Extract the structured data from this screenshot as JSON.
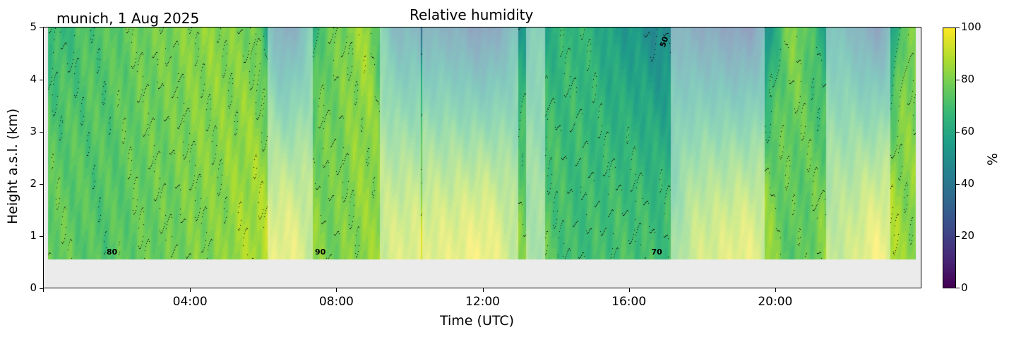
{
  "chart_data": {
    "type": "heatmap",
    "title": "Relative humidity",
    "subtitle": "munich, 1 Aug 2025",
    "xlabel": "Time (UTC)",
    "ylabel": "Height a.s.l. (km)",
    "xlim_hours": [
      0,
      24
    ],
    "ylim": [
      0,
      5
    ],
    "x_ticks": [
      {
        "hour": 4,
        "label": "04:00"
      },
      {
        "hour": 8,
        "label": "08:00"
      },
      {
        "hour": 12,
        "label": "12:00"
      },
      {
        "hour": 16,
        "label": "16:00"
      },
      {
        "hour": 20,
        "label": "20:00"
      }
    ],
    "y_ticks": [
      {
        "value": 0,
        "label": "0"
      },
      {
        "value": 1,
        "label": "1"
      },
      {
        "value": 2,
        "label": "2"
      },
      {
        "value": 3,
        "label": "3"
      },
      {
        "value": 4,
        "label": "4"
      },
      {
        "value": 5,
        "label": "5"
      }
    ],
    "colorbar": {
      "label": "%",
      "colormap": "viridis",
      "range": [
        0,
        100
      ],
      "ticks": [
        {
          "value": 0,
          "label": "0"
        },
        {
          "value": 20,
          "label": "20"
        },
        {
          "value": 40,
          "label": "40"
        },
        {
          "value": 60,
          "label": "60"
        },
        {
          "value": 80,
          "label": "80"
        },
        {
          "value": 100,
          "label": "100"
        }
      ]
    },
    "data_extent": {
      "time_start_hour": 0.12,
      "time_end_hour": 23.84,
      "height_min_km": 0.55,
      "height_max_km": 5
    },
    "missing_color": "#ebebeb",
    "contour_labels": [
      {
        "text": "80",
        "hour": 1.85,
        "height_km": 0.68
      },
      {
        "text": "90",
        "hour": 7.55,
        "height_km": 0.68
      },
      {
        "text": "70",
        "hour": 16.75,
        "height_km": 0.68
      },
      {
        "text": "50",
        "hour": 16.95,
        "height_km": 4.7
      }
    ],
    "low_quality_periods_hours": [
      [
        6.12,
        7.34
      ],
      [
        9.18,
        10.3
      ],
      [
        10.34,
        12.96
      ],
      [
        13.18,
        13.7
      ],
      [
        17.14,
        19.7
      ],
      [
        21.38,
        23.14
      ]
    ],
    "profiles": [
      {
        "hour": 0.3,
        "rh_surface": 78,
        "rh_top": 68
      },
      {
        "hour": 1.5,
        "rh_surface": 74,
        "rh_top": 74
      },
      {
        "hour": 3.0,
        "rh_surface": 78,
        "rh_top": 80
      },
      {
        "hour": 4.5,
        "rh_surface": 82,
        "rh_top": 84
      },
      {
        "hour": 5.7,
        "rh_surface": 88,
        "rh_top": 80
      },
      {
        "hour": 6.6,
        "rh_surface": 96,
        "rh_top": 35
      },
      {
        "hour": 7.8,
        "rh_surface": 80,
        "rh_top": 78
      },
      {
        "hour": 8.8,
        "rh_surface": 84,
        "rh_top": 86
      },
      {
        "hour": 9.7,
        "rh_surface": 92,
        "rh_top": 45
      },
      {
        "hour": 11.0,
        "rh_surface": 94,
        "rh_top": 40
      },
      {
        "hour": 12.0,
        "rh_surface": 98,
        "rh_top": 30
      },
      {
        "hour": 13.4,
        "rh_surface": 78,
        "rh_top": 60
      },
      {
        "hour": 14.5,
        "rh_surface": 70,
        "rh_top": 68
      },
      {
        "hour": 16.0,
        "rh_surface": 72,
        "rh_top": 55
      },
      {
        "hour": 16.9,
        "rh_surface": 70,
        "rh_top": 48
      },
      {
        "hour": 18.0,
        "rh_surface": 90,
        "rh_top": 35
      },
      {
        "hour": 19.2,
        "rh_surface": 95,
        "rh_top": 28
      },
      {
        "hour": 20.5,
        "rh_surface": 75,
        "rh_top": 82
      },
      {
        "hour": 21.8,
        "rh_surface": 86,
        "rh_top": 50
      },
      {
        "hour": 22.8,
        "rh_surface": 98,
        "rh_top": 32
      },
      {
        "hour": 23.6,
        "rh_surface": 84,
        "rh_top": 80
      }
    ]
  }
}
